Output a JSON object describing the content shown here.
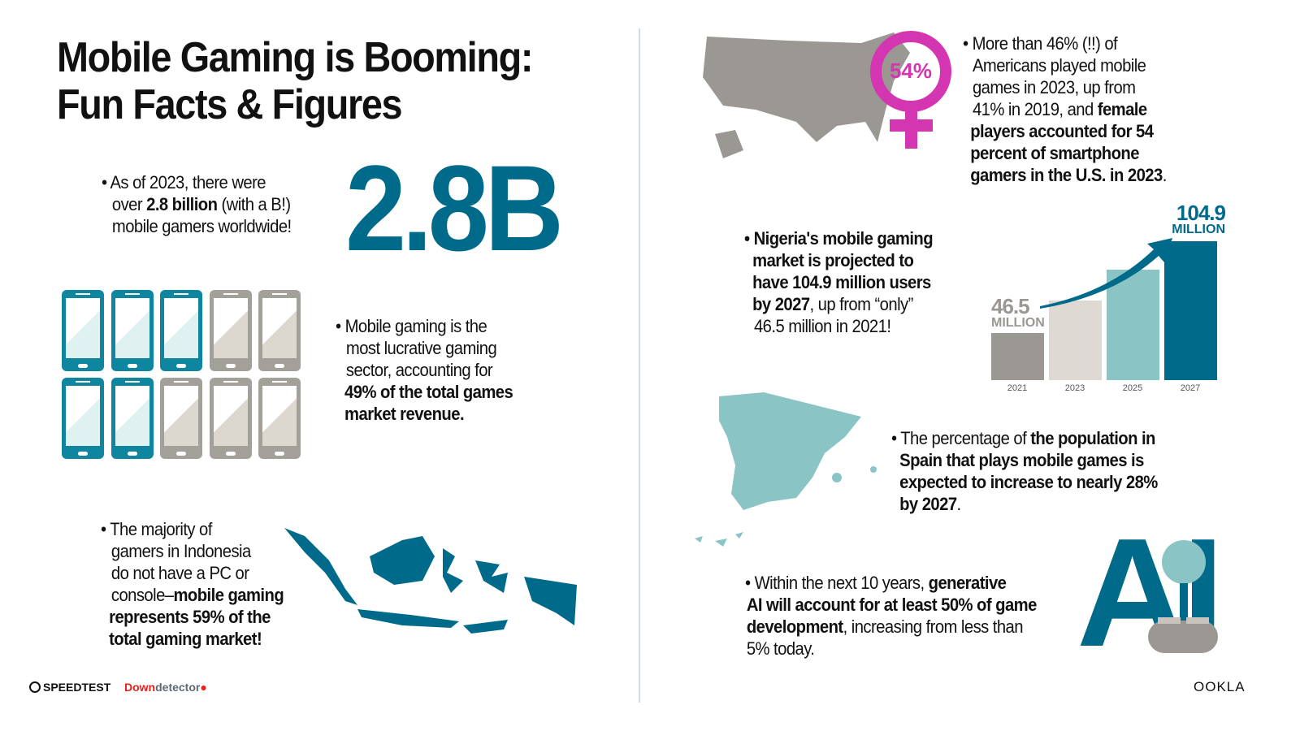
{
  "title": {
    "line1": "Mobile Gaming is Booming:",
    "line2": "Fun Facts & Figures"
  },
  "gamers": {
    "pre": "• As of 2023, there were",
    "over": "over ",
    "bold": "2.8 billion",
    "post": " (with a B!)",
    "line3": "mobile gamers worldwide!",
    "big": "2.8B"
  },
  "phones": {
    "total": 10,
    "highlighted": 5,
    "colors": {
      "highlight": "#0e86a0",
      "other": "#a39f99"
    }
  },
  "revenue": {
    "l1": "• Mobile gaming is the",
    "l2": "most lucrative gaming",
    "l3": "sector, accounting for",
    "b1": "49% of the total games",
    "b2": "market revenue."
  },
  "indonesia": {
    "l1": "• The majority of",
    "l2": "gamers in Indonesia",
    "l3": "do not have a PC or",
    "l4a": "console–",
    "l4b": "mobile gaming",
    "b1": "represents 59% of the",
    "b2": "total gaming market!"
  },
  "usa": {
    "pct": "54%",
    "l1": "• More than 46% (!!) of",
    "l2": "Americans played mobile",
    "l3": "games in 2023, up from",
    "l4a": "41% in 2019, and ",
    "l4b": "female",
    "b1": "players accounted for 54",
    "b2": "percent of smartphone",
    "b3": "gamers in the U.S. in 2023",
    "end": "."
  },
  "nigeria": {
    "b1": "• Nigeria's mobile gaming",
    "b2": "market is projected to",
    "b3": "have 104.9 million users",
    "b4": "by 2027",
    "l4": ", up from “only”",
    "l5": "46.5 million in 2021!"
  },
  "chart_data": {
    "type": "bar",
    "categories": [
      "2021",
      "2023",
      "2025",
      "2027"
    ],
    "values": [
      46.5,
      67,
      87,
      104.9
    ],
    "data_labels": [
      {
        "value": "46.5",
        "unit": "MILLION"
      },
      null,
      null,
      {
        "value": "104.9",
        "unit": "MILLION"
      }
    ],
    "colors": [
      "#9b9792",
      "#dedad3",
      "#8bc4c5",
      "#006a8a"
    ],
    "grid": false
  },
  "spain": {
    "l1a": "• The percentage of ",
    "l1b": "the population in",
    "b2": "Spain that plays mobile games is",
    "b3": "expected to increase to nearly 28%",
    "b4": "by 2027",
    "end": "."
  },
  "ai": {
    "l1a": "• Within the next 10 years, ",
    "l1b": "generative",
    "b2": "AI will account for at least 50% of game",
    "b3": "development",
    "l3": ", increasing from less than",
    "l4": "5% today.",
    "logo": "AI"
  },
  "footer": {
    "speedtest": "SPEEDTEST",
    "down": "Down",
    "detector": "detector",
    "ookla": "OOKLA"
  }
}
